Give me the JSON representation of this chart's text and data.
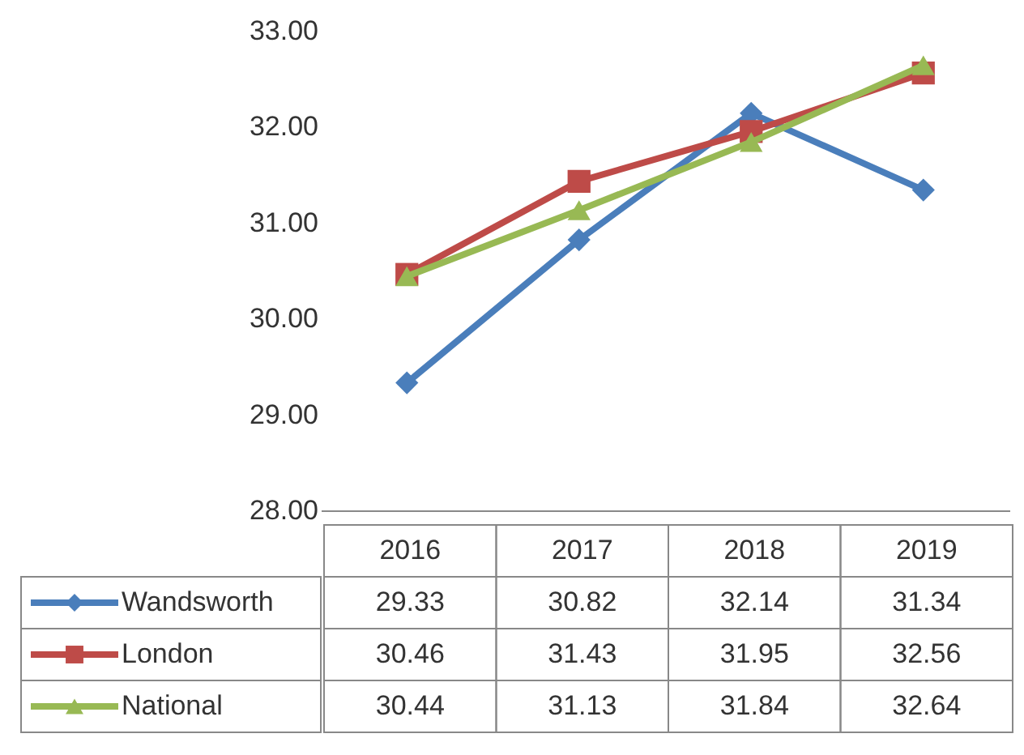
{
  "chart_data": {
    "type": "line",
    "categories": [
      "2016",
      "2017",
      "2018",
      "2019"
    ],
    "series": [
      {
        "name": "Wandsworth",
        "color": "#4a7ebb",
        "marker": "diamond",
        "values": [
          29.33,
          30.82,
          32.14,
          31.34
        ]
      },
      {
        "name": "London",
        "color": "#be4b48",
        "marker": "square",
        "values": [
          30.46,
          31.43,
          31.95,
          32.56
        ]
      },
      {
        "name": "National",
        "color": "#98b954",
        "marker": "triangle",
        "values": [
          30.44,
          31.13,
          31.84,
          32.64
        ]
      }
    ],
    "ylim": [
      28,
      33
    ],
    "yticks": [
      {
        "value": 28,
        "label": "28.00"
      },
      {
        "value": 29,
        "label": "29.00"
      },
      {
        "value": 30,
        "label": "30.00"
      },
      {
        "value": 31,
        "label": "31.00"
      },
      {
        "value": 32,
        "label": "32.00"
      },
      {
        "value": 33,
        "label": "33.00"
      }
    ],
    "data_labels": true,
    "legend": "bottom",
    "grid": false,
    "line_style": "solid"
  }
}
